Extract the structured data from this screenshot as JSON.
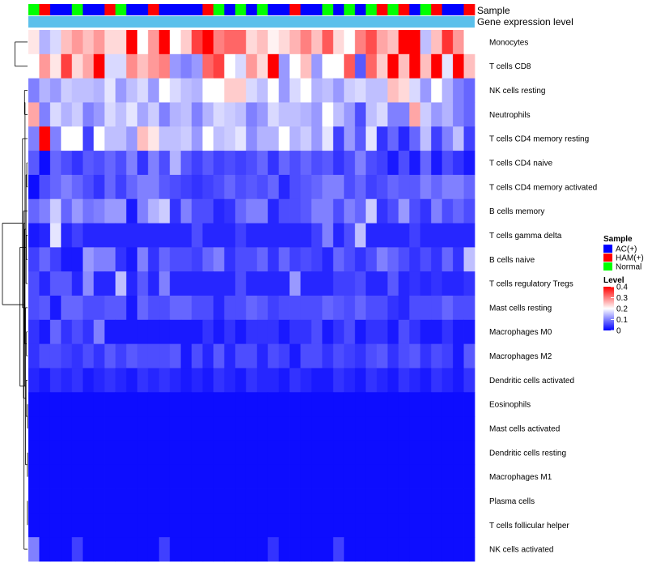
{
  "chart_data": {
    "type": "heatmap",
    "title": "",
    "annotation_tracks": [
      {
        "name": "Sample",
        "type": "categorical"
      },
      {
        "name": "Gene expression level",
        "type": "constant"
      }
    ],
    "sample_groups": [
      {
        "label": "AC(+)",
        "color": "#0000ff"
      },
      {
        "label": "HAM(+)",
        "color": "#ff0000"
      },
      {
        "label": "Normal",
        "color": "#00ff00"
      }
    ],
    "sample_labels": [
      "Normal",
      "HAM(+)",
      "AC(+)",
      "AC(+)",
      "Normal",
      "AC(+)",
      "AC(+)",
      "HAM(+)",
      "Normal",
      "AC(+)",
      "AC(+)",
      "HAM(+)",
      "AC(+)",
      "AC(+)",
      "AC(+)",
      "AC(+)",
      "HAM(+)",
      "Normal",
      "AC(+)",
      "Normal",
      "AC(+)",
      "Normal",
      "AC(+)",
      "AC(+)",
      "HAM(+)",
      "AC(+)",
      "AC(+)",
      "Normal",
      "AC(+)",
      "Normal",
      "AC(+)",
      "Normal",
      "HAM(+)",
      "Normal",
      "HAM(+)",
      "AC(+)",
      "Normal",
      "HAM(+)",
      "AC(+)",
      "AC(+)",
      "HAM(+)"
    ],
    "expression_track_color": "#5bc0eb",
    "rows": [
      "Monocytes",
      "T cells CD8",
      "NK cells resting",
      "Neutrophils",
      "T cells CD4 memory resting",
      "T cells CD4 naive",
      "T cells CD4 memory activated",
      "B cells memory",
      "T cells gamma delta",
      "B cells naive",
      "T cells regulatory  Tregs",
      "Mast cells resting",
      "Macrophages M0",
      "Macrophages M2",
      "Dendritic cells activated",
      "Eosinophils",
      "Mast cells activated",
      "Dendritic cells resting",
      "Macrophages M1",
      "Plasma cells",
      "T cells follicular helper",
      "NK cells activated"
    ],
    "values": [
      [
        0.22,
        0.14,
        0.17,
        0.25,
        0.28,
        0.25,
        0.28,
        0.23,
        0.23,
        0.4,
        0.2,
        0.28,
        0.4,
        0.2,
        0.24,
        0.35,
        0.4,
        0.3,
        0.32,
        0.32,
        0.23,
        0.25,
        0.21,
        0.23,
        0.26,
        0.3,
        0.25,
        0.33,
        0.23,
        0.2,
        0.3,
        0.34,
        0.27,
        0.25,
        0.4,
        0.4,
        0.15,
        0.25,
        0.36,
        0.28,
        0.2
      ],
      [
        0.2,
        0.28,
        0.22,
        0.35,
        0.23,
        0.27,
        0.4,
        0.17,
        0.17,
        0.29,
        0.25,
        0.28,
        0.3,
        0.12,
        0.1,
        0.12,
        0.32,
        0.35,
        0.2,
        0.17,
        0.28,
        0.23,
        0.4,
        0.12,
        0.2,
        0.25,
        0.12,
        0.2,
        0.2,
        0.33,
        0.07,
        0.32,
        0.24,
        0.4,
        0.25,
        0.4,
        0.25,
        0.4,
        0.18,
        0.4,
        0.25
      ],
      [
        0.1,
        0.14,
        0.12,
        0.16,
        0.15,
        0.15,
        0.14,
        0.18,
        0.12,
        0.15,
        0.17,
        0.12,
        0.2,
        0.17,
        0.15,
        0.14,
        0.2,
        0.2,
        0.24,
        0.24,
        0.17,
        0.15,
        0.2,
        0.12,
        0.17,
        0.2,
        0.14,
        0.15,
        0.12,
        0.16,
        0.17,
        0.15,
        0.15,
        0.25,
        0.23,
        0.17,
        0.12,
        0.2,
        0.14,
        0.1,
        0.08
      ],
      [
        0.27,
        0.1,
        0.17,
        0.14,
        0.16,
        0.1,
        0.12,
        0.17,
        0.15,
        0.18,
        0.13,
        0.16,
        0.1,
        0.14,
        0.15,
        0.1,
        0.14,
        0.17,
        0.16,
        0.15,
        0.1,
        0.12,
        0.17,
        0.15,
        0.15,
        0.14,
        0.12,
        0.2,
        0.15,
        0.12,
        0.06,
        0.15,
        0.17,
        0.1,
        0.1,
        0.27,
        0.16,
        0.12,
        0.14,
        0.1,
        0.08
      ],
      [
        0.1,
        0.4,
        0.1,
        0.2,
        0.2,
        0.05,
        0.2,
        0.15,
        0.15,
        0.12,
        0.25,
        0.22,
        0.15,
        0.15,
        0.16,
        0.12,
        0.2,
        0.15,
        0.16,
        0.18,
        0.11,
        0.14,
        0.14,
        0.2,
        0.14,
        0.16,
        0.12,
        0.18,
        0.05,
        0.12,
        0.07,
        0.18,
        0.04,
        0.08,
        0.03,
        0.08,
        0.15,
        0.05,
        0.1,
        0.15,
        0.05
      ],
      [
        0.07,
        0.01,
        0.08,
        0.06,
        0.04,
        0.07,
        0.06,
        0.08,
        0.06,
        0.1,
        0.04,
        0.1,
        0.06,
        0.14,
        0.07,
        0.05,
        0.07,
        0.05,
        0.06,
        0.05,
        0.06,
        0.08,
        0.04,
        0.08,
        0.06,
        0.08,
        0.06,
        0.07,
        0.04,
        0.06,
        0.1,
        0.06,
        0.05,
        0.02,
        0.06,
        0.02,
        0.08,
        0.02,
        0.06,
        0.04,
        0.02
      ],
      [
        0.01,
        0.06,
        0.08,
        0.1,
        0.08,
        0.06,
        0.04,
        0.08,
        0.05,
        0.08,
        0.1,
        0.1,
        0.07,
        0.06,
        0.05,
        0.04,
        0.05,
        0.06,
        0.08,
        0.06,
        0.07,
        0.06,
        0.08,
        0.03,
        0.06,
        0.07,
        0.08,
        0.1,
        0.1,
        0.06,
        0.08,
        0.05,
        0.06,
        0.08,
        0.07,
        0.07,
        0.1,
        0.08,
        0.1,
        0.1,
        0.08
      ],
      [
        0.08,
        0.1,
        0.16,
        0.08,
        0.12,
        0.09,
        0.1,
        0.12,
        0.12,
        0.02,
        0.1,
        0.14,
        0.16,
        0.04,
        0.1,
        0.06,
        0.06,
        0.03,
        0.04,
        0.08,
        0.1,
        0.1,
        0.03,
        0.06,
        0.06,
        0.07,
        0.1,
        0.1,
        0.06,
        0.1,
        0.08,
        0.16,
        0.04,
        0.06,
        0.12,
        0.06,
        0.04,
        0.1,
        0.06,
        0.08,
        0.06
      ],
      [
        0.02,
        0.03,
        0.18,
        0.03,
        0.05,
        0.03,
        0.03,
        0.03,
        0.03,
        0.03,
        0.03,
        0.03,
        0.03,
        0.03,
        0.03,
        0.06,
        0.03,
        0.03,
        0.03,
        0.05,
        0.03,
        0.03,
        0.03,
        0.03,
        0.03,
        0.03,
        0.05,
        0.1,
        0.03,
        0.06,
        0.15,
        0.03,
        0.03,
        0.03,
        0.03,
        0.05,
        0.03,
        0.03,
        0.03,
        0.03,
        0.03
      ],
      [
        0.05,
        0.08,
        0.05,
        0.02,
        0.02,
        0.12,
        0.1,
        0.1,
        0.04,
        0.02,
        0.1,
        0.04,
        0.08,
        0.06,
        0.06,
        0.05,
        0.08,
        0.1,
        0.04,
        0.06,
        0.06,
        0.08,
        0.04,
        0.08,
        0.05,
        0.06,
        0.05,
        0.03,
        0.08,
        0.06,
        0.04,
        0.06,
        0.1,
        0.08,
        0.06,
        0.04,
        0.06,
        0.04,
        0.08,
        0.04,
        0.15
      ],
      [
        0.06,
        0.03,
        0.07,
        0.07,
        0.03,
        0.11,
        0.03,
        0.03,
        0.15,
        0.03,
        0.07,
        0.03,
        0.1,
        0.03,
        0.03,
        0.03,
        0.03,
        0.03,
        0.03,
        0.06,
        0.03,
        0.03,
        0.03,
        0.03,
        0.12,
        0.03,
        0.03,
        0.03,
        0.05,
        0.05,
        0.06,
        0.03,
        0.03,
        0.07,
        0.03,
        0.04,
        0.03,
        0.04,
        0.03,
        0.03,
        0.04
      ],
      [
        0.06,
        0.07,
        0.02,
        0.08,
        0.08,
        0.06,
        0.06,
        0.07,
        0.07,
        0.02,
        0.08,
        0.06,
        0.06,
        0.08,
        0.08,
        0.06,
        0.06,
        0.03,
        0.06,
        0.06,
        0.08,
        0.07,
        0.05,
        0.06,
        0.06,
        0.06,
        0.06,
        0.08,
        0.07,
        0.06,
        0.08,
        0.06,
        0.06,
        0.04,
        0.03,
        0.06,
        0.06,
        0.06,
        0.08,
        0.06,
        0.06
      ],
      [
        0.04,
        0.02,
        0.08,
        0.04,
        0.06,
        0.04,
        0.1,
        0.02,
        0.02,
        0.02,
        0.02,
        0.02,
        0.02,
        0.02,
        0.02,
        0.02,
        0.04,
        0.02,
        0.04,
        0.02,
        0.04,
        0.04,
        0.04,
        0.02,
        0.04,
        0.04,
        0.06,
        0.02,
        0.04,
        0.06,
        0.02,
        0.04,
        0.04,
        0.02,
        0.06,
        0.04,
        0.02,
        0.02,
        0.04,
        0.02,
        0.02
      ],
      [
        0.04,
        0.06,
        0.06,
        0.05,
        0.04,
        0.06,
        0.04,
        0.07,
        0.05,
        0.07,
        0.06,
        0.06,
        0.06,
        0.07,
        0.02,
        0.06,
        0.03,
        0.07,
        0.03,
        0.06,
        0.06,
        0.03,
        0.06,
        0.05,
        0.02,
        0.06,
        0.06,
        0.04,
        0.06,
        0.05,
        0.04,
        0.06,
        0.07,
        0.04,
        0.06,
        0.07,
        0.04,
        0.06,
        0.05,
        0.02,
        0.07
      ],
      [
        0.03,
        0.02,
        0.04,
        0.03,
        0.04,
        0.02,
        0.03,
        0.04,
        0.03,
        0.02,
        0.04,
        0.03,
        0.04,
        0.03,
        0.02,
        0.03,
        0.02,
        0.04,
        0.03,
        0.02,
        0.04,
        0.03,
        0.03,
        0.02,
        0.04,
        0.03,
        0.02,
        0.02,
        0.04,
        0.03,
        0.02,
        0.04,
        0.03,
        0.02,
        0.04,
        0.03,
        0.02,
        0.04,
        0.03,
        0.02,
        0.04
      ],
      [
        0.01,
        0.01,
        0.01,
        0.01,
        0.01,
        0.01,
        0.01,
        0.01,
        0.01,
        0.01,
        0.01,
        0.01,
        0.01,
        0.01,
        0.01,
        0.01,
        0.01,
        0.01,
        0.01,
        0.01,
        0.01,
        0.01,
        0.01,
        0.01,
        0.01,
        0.01,
        0.01,
        0.01,
        0.01,
        0.01,
        0.01,
        0.01,
        0.01,
        0.01,
        0.01,
        0.01,
        0.01,
        0.01,
        0.01,
        0.01,
        0.01
      ],
      [
        0.01,
        0.01,
        0.01,
        0.01,
        0.01,
        0.01,
        0.01,
        0.01,
        0.01,
        0.01,
        0.01,
        0.01,
        0.01,
        0.01,
        0.01,
        0.01,
        0.01,
        0.01,
        0.01,
        0.01,
        0.01,
        0.01,
        0.01,
        0.01,
        0.01,
        0.01,
        0.01,
        0.01,
        0.01,
        0.01,
        0.01,
        0.01,
        0.01,
        0.01,
        0.01,
        0.01,
        0.01,
        0.01,
        0.01,
        0.01,
        0.01
      ],
      [
        0.01,
        0.01,
        0.01,
        0.01,
        0.01,
        0.01,
        0.01,
        0.01,
        0.01,
        0.01,
        0.01,
        0.01,
        0.01,
        0.01,
        0.01,
        0.01,
        0.01,
        0.01,
        0.01,
        0.01,
        0.01,
        0.01,
        0.01,
        0.01,
        0.01,
        0.01,
        0.01,
        0.01,
        0.01,
        0.01,
        0.01,
        0.01,
        0.01,
        0.01,
        0.01,
        0.01,
        0.01,
        0.01,
        0.01,
        0.01,
        0.01
      ],
      [
        0.01,
        0.01,
        0.01,
        0.01,
        0.01,
        0.01,
        0.01,
        0.01,
        0.01,
        0.01,
        0.01,
        0.01,
        0.01,
        0.01,
        0.01,
        0.01,
        0.01,
        0.01,
        0.01,
        0.01,
        0.01,
        0.01,
        0.01,
        0.01,
        0.01,
        0.01,
        0.01,
        0.01,
        0.01,
        0.01,
        0.01,
        0.01,
        0.01,
        0.01,
        0.01,
        0.01,
        0.01,
        0.01,
        0.01,
        0.01,
        0.01
      ],
      [
        0.01,
        0.01,
        0.01,
        0.01,
        0.01,
        0.01,
        0.01,
        0.01,
        0.01,
        0.01,
        0.01,
        0.01,
        0.01,
        0.01,
        0.01,
        0.01,
        0.01,
        0.01,
        0.01,
        0.01,
        0.01,
        0.01,
        0.01,
        0.01,
        0.01,
        0.01,
        0.01,
        0.01,
        0.01,
        0.01,
        0.01,
        0.01,
        0.01,
        0.01,
        0.01,
        0.01,
        0.01,
        0.01,
        0.01,
        0.01,
        0.01
      ],
      [
        0.01,
        0.01,
        0.01,
        0.01,
        0.01,
        0.01,
        0.01,
        0.01,
        0.01,
        0.01,
        0.01,
        0.01,
        0.01,
        0.01,
        0.01,
        0.01,
        0.01,
        0.01,
        0.01,
        0.01,
        0.01,
        0.01,
        0.01,
        0.01,
        0.01,
        0.01,
        0.01,
        0.01,
        0.01,
        0.01,
        0.01,
        0.01,
        0.01,
        0.01,
        0.01,
        0.01,
        0.01,
        0.01,
        0.01,
        0.01,
        0.01
      ],
      [
        0.1,
        0.01,
        0.01,
        0.01,
        0.05,
        0.01,
        0.01,
        0.01,
        0.01,
        0.01,
        0.01,
        0.01,
        0.05,
        0.01,
        0.01,
        0.01,
        0.01,
        0.01,
        0.01,
        0.01,
        0.01,
        0.01,
        0.04,
        0.01,
        0.01,
        0.01,
        0.01,
        0.01,
        0.05,
        0.01,
        0.01,
        0.01,
        0.01,
        0.01,
        0.01,
        0.01,
        0.01,
        0.01,
        0.01,
        0.01,
        0.01
      ]
    ],
    "color_scale": {
      "min": 0,
      "max": 0.4,
      "colors": [
        "#0000ff",
        "#ffffff",
        "#ff0000"
      ],
      "ticks": [
        "0",
        "0.1",
        "0.2",
        "0.3",
        "0.4"
      ]
    },
    "legends": {
      "sample_title": "Sample",
      "level_title": "Level"
    },
    "dendrogram": {
      "merges": [
        [
          5,
          6
        ],
        [
          15,
          16
        ],
        [
          17,
          18
        ],
        [
          19,
          20
        ],
        [
          12,
          13
        ],
        [
          8,
          9
        ],
        [
          2,
          3
        ],
        [
          22,
          10
        ],
        [
          24,
          11
        ],
        [
          26,
          28
        ],
        [
          23,
          14
        ],
        [
          29,
          30
        ],
        [
          31,
          21
        ],
        [
          32,
          7
        ],
        [
          33,
          4
        ],
        [
          34,
          27
        ],
        [
          0,
          1
        ],
        [
          36,
          35
        ]
      ],
      "heights": [
        0.03,
        0.003,
        0.003,
        0.004,
        0.04,
        0.05,
        0.12,
        0.06,
        0.08,
        0.1,
        0.06,
        0.12,
        0.14,
        0.16,
        0.2,
        0.3,
        0.5,
        1.0
      ]
    }
  }
}
